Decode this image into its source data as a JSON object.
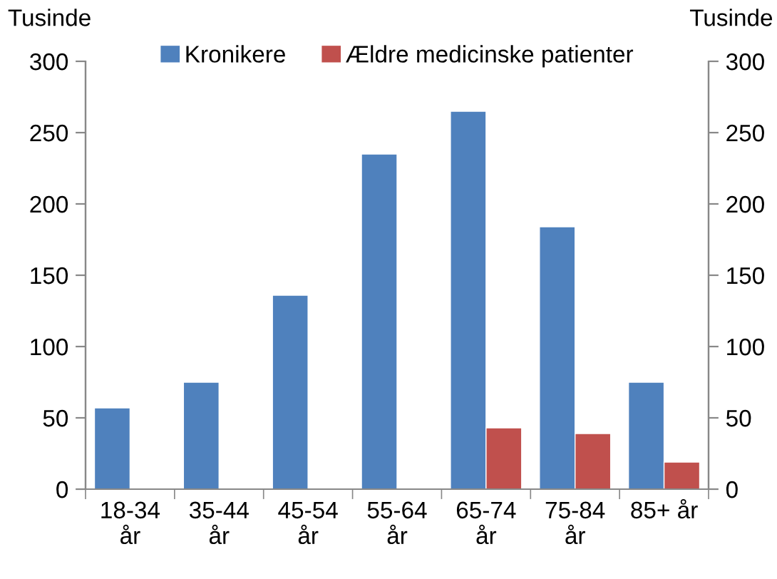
{
  "chart_data": {
    "type": "bar",
    "ylabel": "Tusinde",
    "y2label": "Tusinde",
    "categories": [
      "18-34\når",
      "35-44\når",
      "45-54\når",
      "55-64\når",
      "65-74\når",
      "75-84\når",
      "85+ år"
    ],
    "series": [
      {
        "name": "Kronikere",
        "color": "#4f81bd",
        "values": [
          57,
          75,
          136,
          235,
          265,
          184,
          75
        ]
      },
      {
        "name": "Ældre medicinske patienter",
        "color": "#c0504d",
        "values": [
          null,
          null,
          null,
          null,
          43,
          39,
          19
        ]
      }
    ],
    "ylim": [
      0,
      300
    ],
    "yticks": [
      0,
      50,
      100,
      150,
      200,
      250,
      300
    ],
    "y2lim": [
      0,
      300
    ],
    "y2ticks": [
      0,
      50,
      100,
      150,
      200,
      250,
      300
    ],
    "grid": false,
    "legend": "top"
  }
}
